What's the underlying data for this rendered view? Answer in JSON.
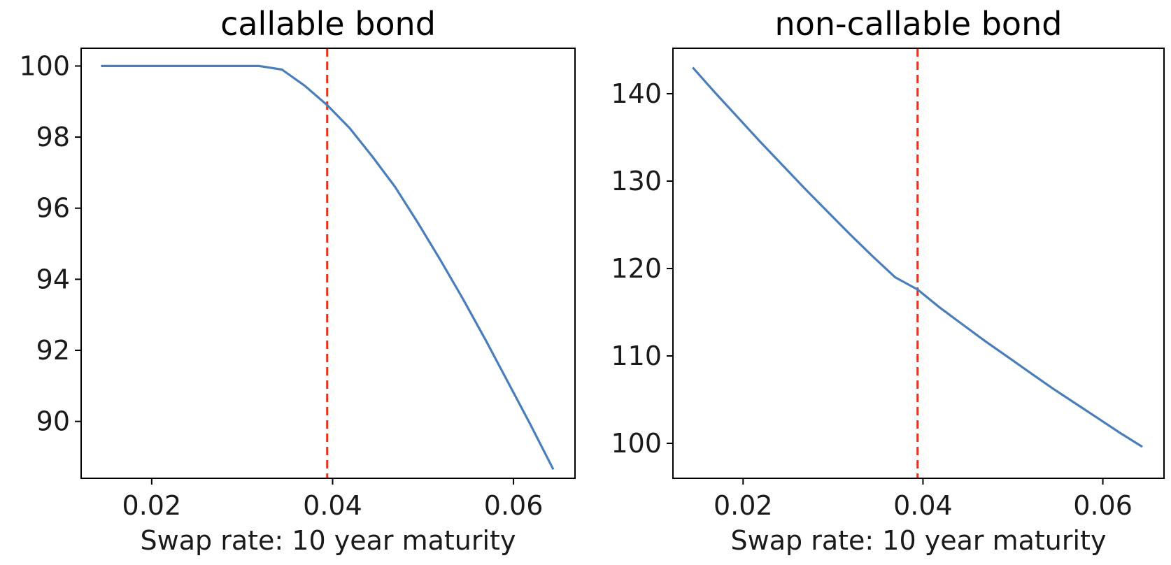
{
  "chart_data": [
    {
      "type": "line",
      "title": "callable bond",
      "xlabel": "Swap rate: 10 year maturity",
      "ylabel": "",
      "xlim": [
        0.0122,
        0.0668
      ],
      "ylim": [
        88.4,
        100.5
      ],
      "xticks": [
        0.02,
        0.04,
        0.06
      ],
      "xtick_labels": [
        "0.02",
        "0.04",
        "0.06"
      ],
      "yticks": [
        90,
        92,
        94,
        96,
        98,
        100
      ],
      "ytick_labels": [
        "90",
        "92",
        "94",
        "96",
        "98",
        "100"
      ],
      "grid": false,
      "reference_line": {
        "orientation": "vertical",
        "x": 0.0394,
        "style": "dashed",
        "color": "#e8321e"
      },
      "series": [
        {
          "color": "#4a7ebb",
          "x": [
            0.0144,
            0.0169,
            0.0194,
            0.0219,
            0.0244,
            0.0269,
            0.0294,
            0.0319,
            0.0344,
            0.0369,
            0.0394,
            0.0419,
            0.0444,
            0.0469,
            0.0494,
            0.0519,
            0.0544,
            0.0569,
            0.0594,
            0.0619,
            0.0644
          ],
          "y": [
            100.0,
            100.0,
            100.0,
            100.0,
            100.0,
            100.0,
            100.0,
            100.0,
            99.9,
            99.45,
            98.9,
            98.25,
            97.45,
            96.6,
            95.6,
            94.55,
            93.45,
            92.3,
            91.1,
            89.9,
            88.65
          ]
        }
      ]
    },
    {
      "type": "line",
      "title": "non-callable bond",
      "xlabel": "Swap rate: 10 year maturity",
      "ylabel": "",
      "xlim": [
        0.0122,
        0.0668
      ],
      "ylim": [
        96.0,
        145.2
      ],
      "xticks": [
        0.02,
        0.04,
        0.06
      ],
      "xtick_labels": [
        "0.02",
        "0.04",
        "0.06"
      ],
      "yticks": [
        100,
        110,
        120,
        130,
        140
      ],
      "ytick_labels": [
        "100",
        "110",
        "120",
        "130",
        "140"
      ],
      "grid": false,
      "reference_line": {
        "orientation": "vertical",
        "x": 0.0394,
        "style": "dashed",
        "color": "#e8321e"
      },
      "series": [
        {
          "color": "#4a7ebb",
          "x": [
            0.0144,
            0.0169,
            0.0194,
            0.0219,
            0.0244,
            0.0269,
            0.0294,
            0.0319,
            0.0344,
            0.0369,
            0.0394,
            0.0419,
            0.0444,
            0.0469,
            0.0494,
            0.0519,
            0.0544,
            0.0569,
            0.0594,
            0.0619,
            0.0644
          ],
          "y": [
            143.0,
            140.1,
            137.3,
            134.5,
            131.8,
            129.1,
            126.5,
            123.9,
            121.4,
            119.0,
            117.6,
            115.5,
            113.6,
            111.7,
            109.9,
            108.1,
            106.3,
            104.6,
            102.9,
            101.2,
            99.6
          ]
        }
      ]
    }
  ]
}
